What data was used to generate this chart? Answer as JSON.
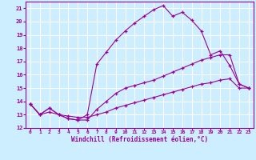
{
  "xlabel": "Windchill (Refroidissement éolien,°C)",
  "bg_color": "#cceeff",
  "grid_color": "#ffffff",
  "line_color": "#990099",
  "xlim": [
    -0.5,
    23.5
  ],
  "ylim": [
    12,
    21.5
  ],
  "xticks": [
    0,
    1,
    2,
    3,
    4,
    5,
    6,
    7,
    8,
    9,
    10,
    11,
    12,
    13,
    14,
    15,
    16,
    17,
    18,
    19,
    20,
    21,
    22,
    23
  ],
  "yticks": [
    12,
    13,
    14,
    15,
    16,
    17,
    18,
    19,
    20,
    21
  ],
  "line1_x": [
    0,
    1,
    2,
    3,
    4,
    5,
    6,
    7,
    8,
    9,
    10,
    11,
    12,
    13,
    14,
    15,
    16,
    17,
    18,
    19,
    20,
    21,
    22,
    23
  ],
  "line1_y": [
    13.8,
    13.0,
    13.5,
    13.0,
    12.7,
    12.6,
    13.0,
    16.8,
    17.7,
    18.6,
    19.3,
    19.9,
    20.4,
    20.9,
    21.2,
    20.4,
    20.7,
    20.1,
    19.3,
    17.5,
    17.8,
    16.7,
    15.3,
    15.0
  ],
  "line2_x": [
    0,
    1,
    2,
    3,
    4,
    5,
    6,
    7,
    8,
    9,
    10,
    11,
    12,
    13,
    14,
    15,
    16,
    17,
    18,
    19,
    20,
    21,
    22,
    23
  ],
  "line2_y": [
    13.8,
    13.0,
    13.5,
    13.0,
    12.7,
    12.6,
    12.6,
    13.4,
    14.0,
    14.6,
    15.0,
    15.2,
    15.4,
    15.6,
    15.9,
    16.2,
    16.5,
    16.8,
    17.1,
    17.3,
    17.5,
    17.5,
    15.3,
    15.0
  ],
  "line3_x": [
    0,
    1,
    2,
    3,
    4,
    5,
    6,
    7,
    8,
    9,
    10,
    11,
    12,
    13,
    14,
    15,
    16,
    17,
    18,
    19,
    20,
    21,
    22,
    23
  ],
  "line3_y": [
    13.8,
    13.0,
    13.2,
    13.0,
    12.9,
    12.8,
    12.8,
    13.0,
    13.2,
    13.5,
    13.7,
    13.9,
    14.1,
    14.3,
    14.5,
    14.7,
    14.9,
    15.1,
    15.3,
    15.4,
    15.6,
    15.7,
    15.0,
    15.0
  ],
  "marker": "+"
}
